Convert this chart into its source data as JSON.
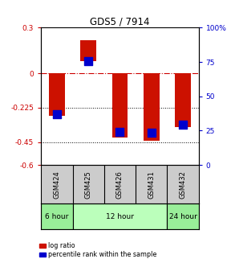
{
  "title": "GDS5 / 7914",
  "samples": [
    "GSM424",
    "GSM425",
    "GSM426",
    "GSM431",
    "GSM432"
  ],
  "log_ratio_bottom": [
    -0.28,
    0.08,
    -0.42,
    -0.44,
    -0.35
  ],
  "log_ratio_top": [
    0.0,
    0.22,
    0.0,
    0.0,
    0.0
  ],
  "percentile_values": [
    -0.27,
    0.08,
    -0.385,
    -0.39,
    -0.335
  ],
  "ylim": [
    -0.6,
    0.3
  ],
  "yticks_left": [
    0.3,
    0.0,
    -0.225,
    -0.45,
    -0.6
  ],
  "yticks_left_labels": [
    "0.3",
    "0",
    "-0.225",
    "-0.45",
    "-0.6"
  ],
  "yticks_right_vals": [
    0.3,
    0.075,
    -0.15,
    -0.375,
    -0.6
  ],
  "yticks_right_labels": [
    "100%",
    "75",
    "50",
    "25",
    "0"
  ],
  "hline_y": 0,
  "dotted_lines": [
    -0.225,
    -0.45
  ],
  "bar_color": "#cc1100",
  "dot_color": "#0000cc",
  "bar_width": 0.5,
  "dot_size": 55,
  "time_groups": [
    {
      "label": "6 hour",
      "start": 0,
      "end": 1,
      "color": "#99ee99"
    },
    {
      "label": "12 hour",
      "start": 1,
      "end": 4,
      "color": "#bbffbb"
    },
    {
      "label": "24 hour",
      "start": 4,
      "end": 5,
      "color": "#99ee99"
    }
  ],
  "legend_bar_label": "log ratio",
  "legend_dot_label": "percentile rank within the sample",
  "bg_color": "#ffffff",
  "sample_row_color": "#cccccc",
  "grid_color": "#888888"
}
